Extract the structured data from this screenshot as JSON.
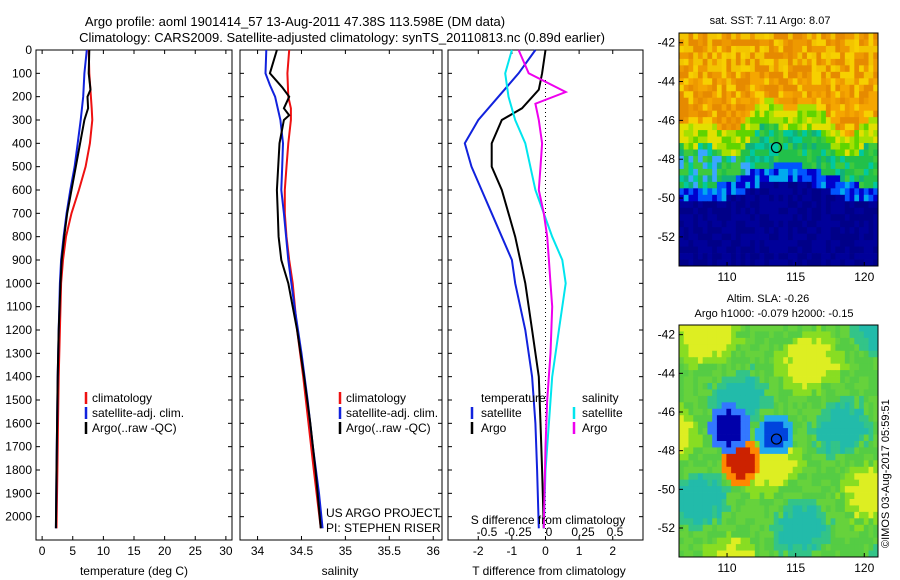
{
  "header": {
    "line1": "Argo profile: aoml 1901414_57 13-Aug-2011 47.38S 113.598E (DM data)",
    "line2": "Climatology: CARS2009. Satellite-adjusted climatology: synTS_20110813.nc (0.89d earlier)"
  },
  "footer": {
    "project": "US ARGO PROJECT",
    "pi": "PI: STEPHEN RISER",
    "credit": "©IMOS 03-Aug-2017 05:59:51"
  },
  "colors": {
    "climatology": "#ee1111",
    "satellite": "#1122dd",
    "argo": "#000000",
    "t_diff": "#00e5ee",
    "s_diff_argo": "#ee00ee"
  },
  "chart_data": [
    {
      "id": "temperature",
      "type": "line",
      "xlabel": "temperature (deg C)",
      "ylabel": "",
      "xlim": [
        -1,
        31
      ],
      "ylim": [
        2100,
        0
      ],
      "xticks": [
        0,
        5,
        10,
        15,
        20,
        25,
        30
      ],
      "yticks": [
        0,
        100,
        200,
        300,
        400,
        500,
        600,
        700,
        800,
        900,
        1000,
        1100,
        1200,
        1300,
        1400,
        1500,
        1600,
        1700,
        1800,
        1900,
        2000
      ],
      "legend": [
        "climatology",
        "satellite-adj. clim.",
        "Argo(..raw -QC)"
      ],
      "series": [
        {
          "name": "climatology",
          "color": "#ee1111",
          "points": [
            [
              7.6,
              0
            ],
            [
              7.7,
              100
            ],
            [
              8.1,
              250
            ],
            [
              8.2,
              300
            ],
            [
              7.8,
              400
            ],
            [
              7.1,
              500
            ],
            [
              6.0,
              600
            ],
            [
              4.8,
              700
            ],
            [
              3.9,
              800
            ],
            [
              3.4,
              900
            ],
            [
              3.1,
              1000
            ],
            [
              2.9,
              1200
            ],
            [
              2.7,
              1400
            ],
            [
              2.6,
              1600
            ],
            [
              2.5,
              1800
            ],
            [
              2.35,
              2050
            ]
          ]
        },
        {
          "name": "satellite-adj. clim.",
          "color": "#1122dd",
          "points": [
            [
              7.3,
              0
            ],
            [
              6.9,
              100
            ],
            [
              6.7,
              200
            ],
            [
              6.3,
              300
            ],
            [
              5.8,
              400
            ],
            [
              5.3,
              500
            ],
            [
              4.6,
              600
            ],
            [
              4.0,
              700
            ],
            [
              3.5,
              800
            ],
            [
              3.1,
              900
            ],
            [
              2.9,
              1000
            ],
            [
              2.7,
              1200
            ],
            [
              2.55,
              1400
            ],
            [
              2.45,
              1600
            ],
            [
              2.35,
              1800
            ],
            [
              2.25,
              2050
            ]
          ]
        },
        {
          "name": "Argo(..raw -QC)",
          "color": "#000000",
          "points": [
            [
              7.7,
              0
            ],
            [
              7.6,
              100
            ],
            [
              7.9,
              170
            ],
            [
              7.4,
              200
            ],
            [
              7.5,
              250
            ],
            [
              6.9,
              300
            ],
            [
              6.2,
              400
            ],
            [
              5.5,
              500
            ],
            [
              4.8,
              600
            ],
            [
              4.1,
              700
            ],
            [
              3.6,
              800
            ],
            [
              3.2,
              900
            ],
            [
              3.0,
              1000
            ],
            [
              2.7,
              1200
            ],
            [
              2.55,
              1400
            ],
            [
              2.45,
              1600
            ],
            [
              2.35,
              1800
            ],
            [
              2.25,
              2050
            ]
          ]
        }
      ]
    },
    {
      "id": "salinity",
      "type": "line",
      "xlabel": "salinity",
      "xlim": [
        33.8,
        36.1
      ],
      "ylim": [
        2100,
        0
      ],
      "xticks": [
        34,
        34.5,
        35,
        35.5,
        36
      ],
      "legend": [
        "climatology",
        "satellite-adj. clim.",
        "Argo(..raw -QC)"
      ],
      "series": [
        {
          "name": "climatology",
          "color": "#ee1111",
          "points": [
            [
              34.36,
              0
            ],
            [
              34.34,
              100
            ],
            [
              34.35,
              200
            ],
            [
              34.38,
              250
            ],
            [
              34.38,
              300
            ],
            [
              34.35,
              400
            ],
            [
              34.33,
              500
            ],
            [
              34.31,
              600
            ],
            [
              34.31,
              700
            ],
            [
              34.33,
              800
            ],
            [
              34.36,
              900
            ],
            [
              34.4,
              1000
            ],
            [
              34.45,
              1200
            ],
            [
              34.52,
              1400
            ],
            [
              34.58,
              1600
            ],
            [
              34.64,
              1800
            ],
            [
              34.72,
              2050
            ]
          ]
        },
        {
          "name": "satellite-adj. clim.",
          "color": "#1122dd",
          "points": [
            [
              34.1,
              0
            ],
            [
              34.09,
              100
            ],
            [
              34.14,
              150
            ],
            [
              34.2,
              200
            ],
            [
              34.26,
              300
            ],
            [
              34.29,
              400
            ],
            [
              34.28,
              500
            ],
            [
              34.27,
              600
            ],
            [
              34.3,
              700
            ],
            [
              34.35,
              900
            ],
            [
              34.42,
              1100
            ],
            [
              34.5,
              1300
            ],
            [
              34.57,
              1500
            ],
            [
              34.63,
              1700
            ],
            [
              34.7,
              1900
            ],
            [
              34.74,
              2050
            ]
          ]
        },
        {
          "name": "Argo(..raw -QC)",
          "color": "#000000",
          "points": [
            [
              34.22,
              0
            ],
            [
              34.14,
              100
            ],
            [
              34.28,
              160
            ],
            [
              34.36,
              200
            ],
            [
              34.3,
              250
            ],
            [
              34.36,
              280
            ],
            [
              34.3,
              300
            ],
            [
              34.25,
              400
            ],
            [
              34.22,
              600
            ],
            [
              34.23,
              700
            ],
            [
              34.24,
              800
            ],
            [
              34.27,
              900
            ],
            [
              34.35,
              1000
            ],
            [
              34.45,
              1200
            ],
            [
              34.53,
              1400
            ],
            [
              34.6,
              1600
            ],
            [
              34.66,
              1800
            ],
            [
              34.72,
              2050
            ]
          ]
        }
      ]
    },
    {
      "id": "difference",
      "type": "line",
      "xlabel": "T difference from climatology",
      "top_label": "S difference from climatology",
      "xlim": [
        -2.9,
        2.9
      ],
      "ylim": [
        2100,
        0
      ],
      "xticks": [
        -2,
        -1,
        0,
        1,
        2
      ],
      "s_ticks": [
        "-0.5",
        "-0.25",
        "0",
        "0.25",
        "0.5"
      ],
      "legend_t_title": "temperature",
      "legend_s_title": "salinity",
      "legend_t": [
        "satellite",
        "Argo"
      ],
      "legend_s": [
        "satellite",
        "Argo"
      ],
      "series": [
        {
          "name": "satellite",
          "group": "temperature",
          "color": "#1122dd",
          "points": [
            [
              -0.3,
              0
            ],
            [
              -0.8,
              100
            ],
            [
              -1.4,
              200
            ],
            [
              -2.0,
              300
            ],
            [
              -2.4,
              400
            ],
            [
              -2.2,
              500
            ],
            [
              -1.9,
              600
            ],
            [
              -1.6,
              700
            ],
            [
              -1.3,
              800
            ],
            [
              -1.0,
              900
            ],
            [
              -0.9,
              1000
            ],
            [
              -0.6,
              1200
            ],
            [
              -0.4,
              1400
            ],
            [
              -0.3,
              1600
            ],
            [
              -0.25,
              1800
            ],
            [
              -0.2,
              2050
            ]
          ]
        },
        {
          "name": "Argo",
          "group": "temperature",
          "color": "#000000",
          "points": [
            [
              0.0,
              0
            ],
            [
              -0.1,
              100
            ],
            [
              -0.2,
              170
            ],
            [
              -0.7,
              250
            ],
            [
              -1.3,
              300
            ],
            [
              -1.6,
              400
            ],
            [
              -1.6,
              500
            ],
            [
              -1.3,
              600
            ],
            [
              -1.1,
              700
            ],
            [
              -0.9,
              800
            ],
            [
              -0.6,
              1000
            ],
            [
              -0.4,
              1200
            ],
            [
              -0.2,
              1400
            ],
            [
              -0.15,
              1600
            ],
            [
              -0.1,
              1800
            ],
            [
              -0.05,
              2050
            ]
          ]
        },
        {
          "name": "satellite",
          "group": "salinity",
          "color": "#00e5ee",
          "points": [
            [
              -1.0,
              0
            ],
            [
              -1.2,
              100
            ],
            [
              -1.1,
              200
            ],
            [
              -0.9,
              300
            ],
            [
              -0.6,
              400
            ],
            [
              -0.3,
              600
            ],
            [
              0.2,
              800
            ],
            [
              0.5,
              900
            ],
            [
              0.6,
              1000
            ],
            [
              0.4,
              1200
            ],
            [
              0.2,
              1400
            ],
            [
              0.1,
              1600
            ],
            [
              0.0,
              1800
            ],
            [
              -0.05,
              2050
            ]
          ]
        },
        {
          "name": "Argo",
          "group": "salinity",
          "color": "#ee00ee",
          "points": [
            [
              -0.8,
              0
            ],
            [
              -0.5,
              100
            ],
            [
              0.6,
              180
            ],
            [
              -0.3,
              230
            ],
            [
              -0.2,
              300
            ],
            [
              -0.1,
              400
            ],
            [
              -0.15,
              500
            ],
            [
              -0.2,
              600
            ],
            [
              -0.05,
              700
            ],
            [
              0.05,
              800
            ],
            [
              0.1,
              900
            ],
            [
              0.15,
              1000
            ],
            [
              0.2,
              1100
            ],
            [
              0.15,
              1300
            ],
            [
              0.05,
              1500
            ],
            [
              0.0,
              1700
            ],
            [
              -0.05,
              2050
            ]
          ]
        }
      ]
    },
    {
      "id": "sst-map",
      "type": "heatmap",
      "title": "sat. SST: 7.11  Argo: 8.07",
      "xlim": [
        106.5,
        121
      ],
      "ylim": [
        -53.5,
        -41.5
      ],
      "xticks": [
        110,
        115,
        120
      ],
      "yticks": [
        -42,
        -44,
        -46,
        -48,
        -50,
        -52
      ],
      "marker": [
        113.6,
        -47.4
      ]
    },
    {
      "id": "sla-map",
      "type": "heatmap",
      "title": "Altim. SLA: -0.26",
      "subtitle": "Argo h1000: -0.079 h2000: -0.15",
      "xlim": [
        106.5,
        121
      ],
      "ylim": [
        -53.5,
        -41.5
      ],
      "xticks": [
        110,
        115,
        120
      ],
      "yticks": [
        -42,
        -44,
        -46,
        -48,
        -50,
        -52
      ],
      "marker": [
        113.6,
        -47.4
      ]
    }
  ]
}
